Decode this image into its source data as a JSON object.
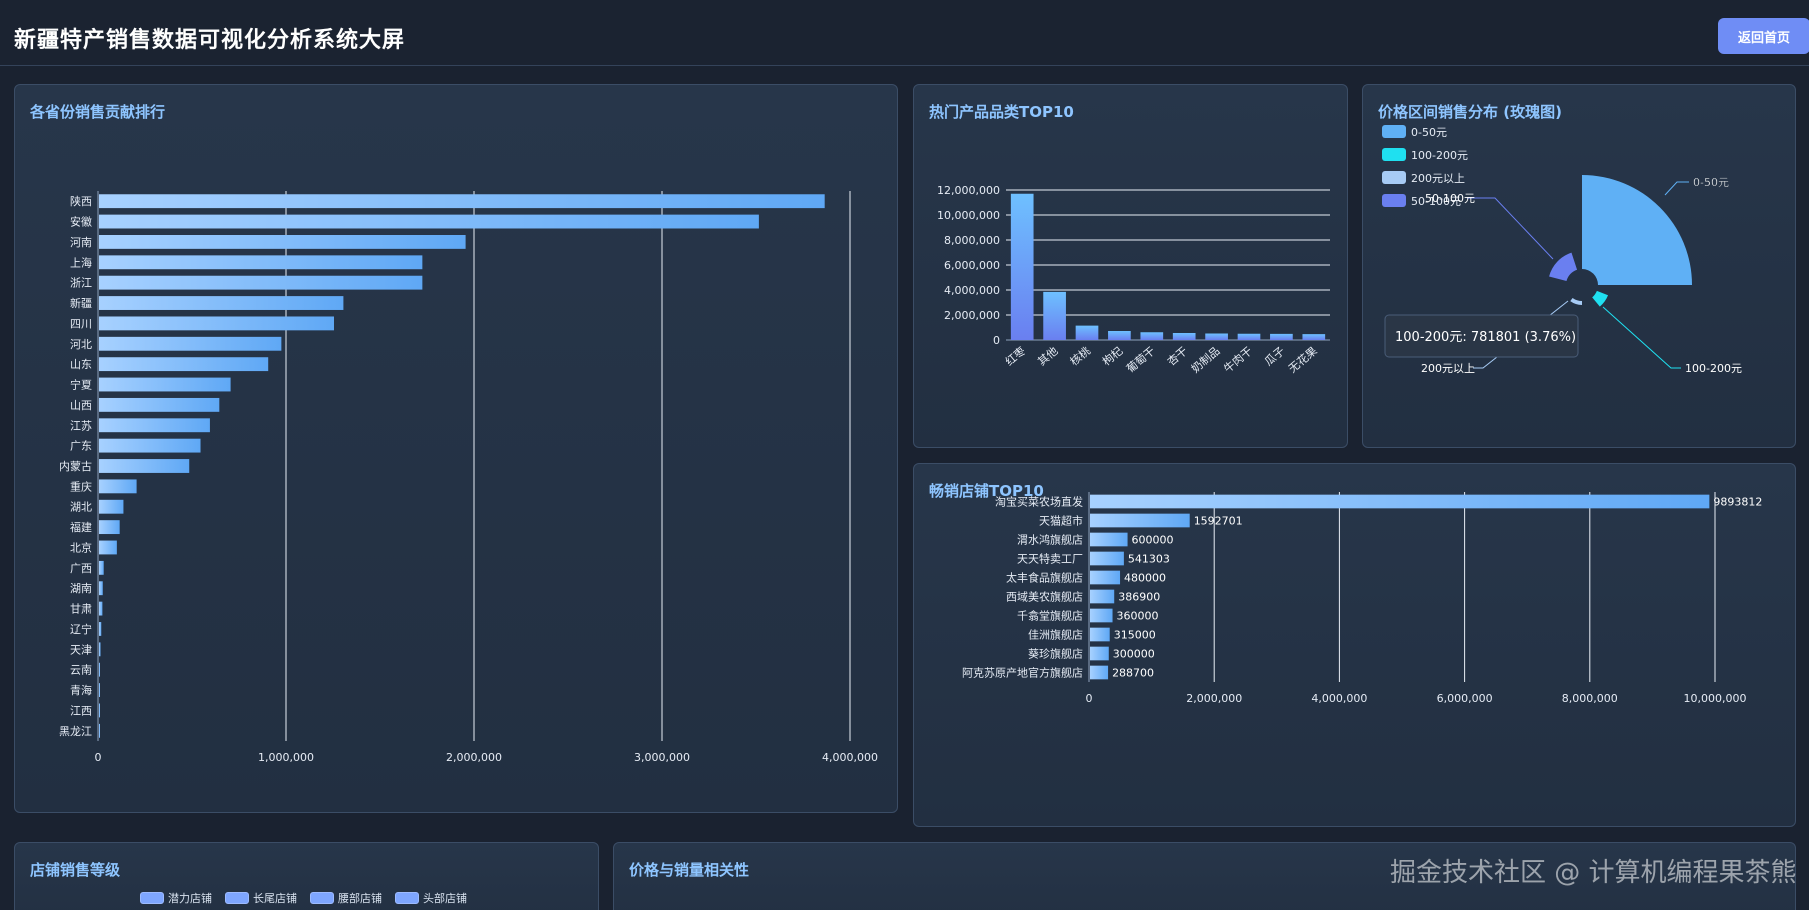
{
  "header": {
    "title": "新疆特产销售数据可视化分析系统大屏",
    "back_label": "返回首页"
  },
  "watermark": "掘金技术社区 @ 计算机编程果茶熊",
  "panels": {
    "province": "各省份销售贡献排行",
    "category": "热门产品品类TOP10",
    "price": "价格区间销售分布 (玫瑰图)",
    "stores": "畅销店铺TOP10",
    "store_level": "店铺销售等级",
    "correlation": "价格与销量相关性"
  },
  "colors": {
    "bar_start": "#a7d1ff",
    "bar_end": "#5fa8f5",
    "rose_blue": "#5fb0f5",
    "rose_cyan": "#1fe0f0",
    "rose_light": "#a7cbf5",
    "rose_indigo": "#6a7ff0"
  },
  "chart_data": [
    {
      "id": "province",
      "type": "bar",
      "orientation": "horizontal",
      "categories": [
        "陕西",
        "安徽",
        "河南",
        "上海",
        "浙江",
        "新疆",
        "四川",
        "河北",
        "山东",
        "宁夏",
        "山西",
        "江苏",
        "广东",
        "内蒙古",
        "重庆",
        "湖北",
        "福建",
        "北京",
        "广西",
        "湖南",
        "甘肃",
        "辽宁",
        "天津",
        "云南",
        "青海",
        "江西",
        "黑龙江"
      ],
      "values": [
        3860000,
        3510000,
        1950000,
        1720000,
        1720000,
        1300000,
        1250000,
        970000,
        900000,
        700000,
        640000,
        590000,
        540000,
        480000,
        200000,
        130000,
        110000,
        95000,
        25000,
        20000,
        18000,
        12000,
        8000,
        5000,
        4000,
        3000,
        2000
      ],
      "xticks": [
        "0",
        "1,000,000",
        "2,000,000",
        "3,000,000",
        "4,000,000"
      ],
      "xlim": [
        0,
        4000000
      ]
    },
    {
      "id": "category",
      "type": "bar",
      "categories": [
        "红枣",
        "其他",
        "核桃",
        "枸杞",
        "葡萄干",
        "杏干",
        "奶制品",
        "牛肉干",
        "瓜子",
        "无花果"
      ],
      "values": [
        11700000,
        3850000,
        1150000,
        720000,
        620000,
        560000,
        520000,
        500000,
        490000,
        470000
      ],
      "yticks": [
        "0",
        "2,000,000",
        "4,000,000",
        "6,000,000",
        "8,000,000",
        "10,000,000",
        "12,000,000"
      ],
      "ylim": [
        0,
        12000000
      ]
    },
    {
      "id": "price",
      "type": "pie",
      "variant": "rose",
      "legend": [
        "0-50元",
        "100-200元",
        "200元以上",
        "50-100元"
      ],
      "slices": [
        {
          "name": "0-50元",
          "value": 18300000
        },
        {
          "name": "100-200元",
          "value": 781801
        },
        {
          "name": "200元以上",
          "value": 200000
        },
        {
          "name": "50-100元",
          "value": 1500000
        }
      ],
      "labels": {
        "a": "0-50元",
        "b": "50-100元",
        "c": "100-200元",
        "d": "200元以上"
      },
      "legend_placement": "top-left",
      "tooltip": "100-200元: 781801 (3.76%)"
    },
    {
      "id": "stores",
      "type": "bar",
      "orientation": "horizontal",
      "categories": [
        "淘宝买菜农场直发",
        "天猫超市",
        "渭水鸿旗舰店",
        "天天特卖工厂",
        "太丰食品旗舰店",
        "西域美农旗舰店",
        "千翕堂旗舰店",
        "佳洲旗舰店",
        "葵珍旗舰店",
        "阿克苏原产地官方旗舰店"
      ],
      "values": [
        9893812,
        1592701,
        600000,
        541303,
        480000,
        386900,
        360000,
        315000,
        300000,
        288700
      ],
      "value_labels": [
        "9893812",
        "1592701",
        "600000",
        "541303",
        "480000",
        "386900",
        "360000",
        "315000",
        "300000",
        "288700"
      ],
      "xticks": [
        "0",
        "2,000,000",
        "4,000,000",
        "6,000,000",
        "8,000,000",
        "10,000,000"
      ],
      "xlim": [
        0,
        10000000
      ]
    },
    {
      "id": "store_level",
      "type": "bar",
      "legend": [
        "潜力店铺",
        "长尾店铺",
        "腰部店铺",
        "头部店铺"
      ],
      "legend_placement": "top"
    }
  ]
}
